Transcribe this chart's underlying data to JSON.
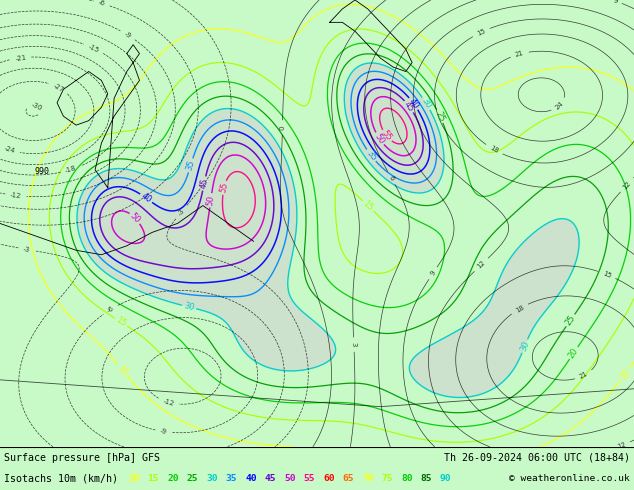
{
  "title_left": "Surface pressure [hPa] GFS",
  "title_right": "Th 26-09-2024 06:00 UTC (18+84)",
  "legend_label": "Isotachs 10m (km/h)",
  "copyright": "© weatheronline.co.uk",
  "legend_values": [
    10,
    15,
    20,
    25,
    30,
    35,
    40,
    45,
    50,
    55,
    60,
    65,
    70,
    75,
    80,
    85,
    90
  ],
  "legend_colors": [
    "#ffff00",
    "#aaff00",
    "#00cc00",
    "#00aa00",
    "#00cccc",
    "#0088ff",
    "#0000ff",
    "#6600cc",
    "#cc00cc",
    "#ff0088",
    "#ff0000",
    "#ff6600",
    "#ffff00",
    "#aaff00",
    "#00cc00",
    "#006600",
    "#00cccc"
  ],
  "bg_color": "#c8fac8",
  "bottom_bg": "#ffffff",
  "fig_width": 6.34,
  "fig_height": 4.9,
  "dpi": 100,
  "map_area_color": "#c8fac8",
  "gray_shade_color": "#d0d0d0"
}
